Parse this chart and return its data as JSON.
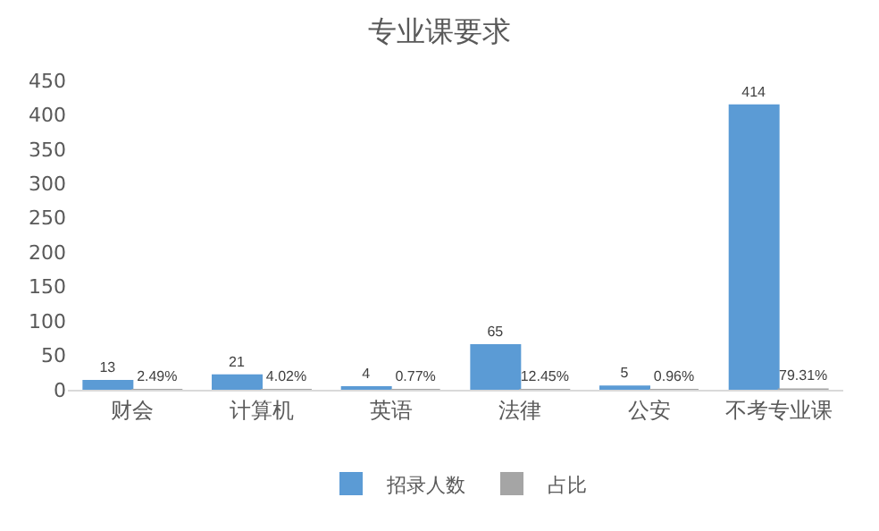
{
  "chart_data": {
    "type": "bar",
    "title": "专业课要求",
    "categories": [
      "财会",
      "计算机",
      "英语",
      "法律",
      "公安",
      "不考专业课"
    ],
    "series": [
      {
        "name": "招录人数",
        "color": "#5b9bd5",
        "values": [
          13,
          21,
          4,
          65,
          5,
          414
        ],
        "value_labels": [
          "13",
          "21",
          "4",
          "65",
          "5",
          "414"
        ]
      },
      {
        "name": "占比",
        "color": "#a5a5a5",
        "values": [
          0.0249,
          0.0402,
          0.0077,
          0.1245,
          0.0096,
          0.7931
        ],
        "value_labels": [
          "2.49%",
          "4.02%",
          "0.77%",
          "12.45%",
          "0.96%",
          "79.31%"
        ]
      }
    ],
    "ylim": [
      0,
      450
    ],
    "yticks": [
      0,
      50,
      100,
      150,
      200,
      250,
      300,
      350,
      400,
      450
    ],
    "grid": false,
    "legend": "bottom"
  }
}
